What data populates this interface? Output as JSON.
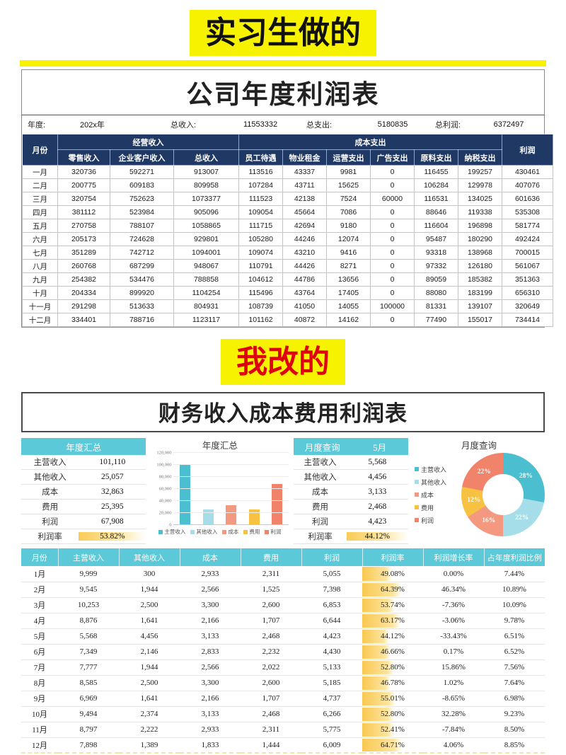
{
  "banners": {
    "intern": "实习生做的",
    "mine": "我改的"
  },
  "colors": {
    "banner_yellow": "#F7F200",
    "banner_red": "#DF0010",
    "navy_header": "#1F3864",
    "teal_header": "#5BC9D8",
    "rate_bar": "#F9C850"
  },
  "sheet1": {
    "title": "公司年度利润表",
    "info": {
      "year_label": "年度:",
      "year_value": "202x年",
      "income_label": "总收入:",
      "income_value": "11553332",
      "expense_label": "总支出:",
      "expense_value": "5180835",
      "profit_label": "总利润:",
      "profit_value": "6372497"
    },
    "header": {
      "month": "月份",
      "income_group": "经营收入",
      "cost_group": "成本支出",
      "profit": "利润",
      "income_cols": [
        "零售收入",
        "企业客户收入",
        "总收入"
      ],
      "cost_cols": [
        "员工待遇",
        "物业租金",
        "运营支出",
        "广告支出",
        "原料支出",
        "纳税支出"
      ]
    },
    "rows": [
      [
        "一月",
        "320736",
        "592271",
        "913007",
        "113516",
        "43337",
        "9981",
        "0",
        "116455",
        "199257",
        "430461"
      ],
      [
        "二月",
        "200775",
        "609183",
        "809958",
        "107284",
        "43711",
        "15625",
        "0",
        "106284",
        "129978",
        "407076"
      ],
      [
        "三月",
        "320754",
        "752623",
        "1073377",
        "111523",
        "42138",
        "7524",
        "60000",
        "116531",
        "134025",
        "601636"
      ],
      [
        "四月",
        "381112",
        "523984",
        "905096",
        "109054",
        "45664",
        "7086",
        "0",
        "88646",
        "119338",
        "535308"
      ],
      [
        "五月",
        "270758",
        "788107",
        "1058865",
        "111715",
        "42694",
        "9180",
        "0",
        "116604",
        "196898",
        "581774"
      ],
      [
        "六月",
        "205173",
        "724628",
        "929801",
        "105280",
        "44246",
        "12074",
        "0",
        "95487",
        "180290",
        "492424"
      ],
      [
        "七月",
        "351289",
        "742712",
        "1094001",
        "109074",
        "43210",
        "9416",
        "0",
        "93318",
        "138968",
        "700015"
      ],
      [
        "八月",
        "260768",
        "687299",
        "948067",
        "110791",
        "44426",
        "8271",
        "0",
        "97332",
        "126180",
        "561067"
      ],
      [
        "九月",
        "254382",
        "534476",
        "788858",
        "104612",
        "44786",
        "13656",
        "0",
        "89059",
        "185382",
        "351363"
      ],
      [
        "十月",
        "204334",
        "899920",
        "1104254",
        "115496",
        "43764",
        "17405",
        "0",
        "88080",
        "183199",
        "656310"
      ],
      [
        "十一月",
        "291298",
        "513633",
        "804931",
        "108739",
        "41050",
        "14055",
        "100000",
        "81331",
        "139107",
        "320649"
      ],
      [
        "十二月",
        "334401",
        "788716",
        "1123117",
        "101162",
        "40872",
        "14162",
        "0",
        "77490",
        "155017",
        "734414"
      ]
    ]
  },
  "section2": {
    "title": "财务收入成本费用利润表",
    "annual_panel": {
      "header": "年度汇总",
      "rows": [
        [
          "主营收入",
          "101,110"
        ],
        [
          "其他收入",
          "25,057"
        ],
        [
          "成本",
          "32,863"
        ],
        [
          "费用",
          "25,395"
        ],
        [
          "利润",
          "67,908"
        ]
      ],
      "rate_label": "利润率",
      "rate_value": "53.82%"
    },
    "monthly_panel": {
      "header": "月度查询",
      "month": "5月",
      "rows": [
        [
          "主营收入",
          "5,568"
        ],
        [
          "其他收入",
          "4,456"
        ],
        [
          "成本",
          "3,133"
        ],
        [
          "费用",
          "2,468"
        ],
        [
          "利润",
          "4,423"
        ]
      ],
      "rate_label": "利润率",
      "rate_value": "44.12%"
    },
    "table": {
      "headers": [
        "月份",
        "主营收入",
        "其他收入",
        "成本",
        "费用",
        "利润",
        "利润率",
        "利润增长率",
        "占年度利润比例"
      ],
      "rows": [
        [
          "1月",
          "9,999",
          "300",
          "2,933",
          "2,311",
          "5,055",
          "49.08%",
          "0.00%",
          "7.44%"
        ],
        [
          "2月",
          "9,545",
          "1,944",
          "2,566",
          "1,525",
          "7,398",
          "64.39%",
          "46.34%",
          "10.89%"
        ],
        [
          "3月",
          "10,253",
          "2,500",
          "3,300",
          "2,600",
          "6,853",
          "53.74%",
          "-7.36%",
          "10.09%"
        ],
        [
          "4月",
          "8,876",
          "1,641",
          "2,166",
          "1,707",
          "6,644",
          "63.17%",
          "-3.06%",
          "9.78%"
        ],
        [
          "5月",
          "5,568",
          "4,456",
          "3,133",
          "2,468",
          "4,423",
          "44.12%",
          "-33.43%",
          "6.51%"
        ],
        [
          "6月",
          "7,349",
          "2,146",
          "2,833",
          "2,232",
          "4,430",
          "46.66%",
          "0.17%",
          "6.52%"
        ],
        [
          "7月",
          "7,777",
          "1,944",
          "2,566",
          "2,022",
          "5,133",
          "52.80%",
          "15.86%",
          "7.56%"
        ],
        [
          "8月",
          "8,585",
          "2,500",
          "3,300",
          "2,600",
          "5,185",
          "46.78%",
          "1.02%",
          "7.64%"
        ],
        [
          "9月",
          "6,969",
          "1,641",
          "2,166",
          "1,707",
          "4,737",
          "55.01%",
          "-8.65%",
          "6.98%"
        ],
        [
          "10月",
          "9,494",
          "2,374",
          "3,133",
          "2,468",
          "6,266",
          "52.80%",
          "32.28%",
          "9.23%"
        ],
        [
          "11月",
          "8,797",
          "2,222",
          "2,933",
          "2,311",
          "5,775",
          "52.41%",
          "-7.84%",
          "8.50%"
        ],
        [
          "12月",
          "7,898",
          "1,389",
          "1,833",
          "1,444",
          "6,009",
          "64.71%",
          "4.06%",
          "8.85%"
        ]
      ]
    }
  },
  "chart_data": [
    {
      "type": "bar",
      "title": "年度汇总",
      "categories": [
        "主营收入",
        "其他收入",
        "成本",
        "费用",
        "利润"
      ],
      "values": [
        101110,
        25057,
        32863,
        25395,
        67908
      ],
      "colors": [
        "#4BBFCF",
        "#A5DEE8",
        "#F4997F",
        "#F7C242",
        "#F0836A"
      ],
      "xlabel": "",
      "ylabel": "",
      "ylim": [
        0,
        120000
      ],
      "ytick_step": 20000,
      "grid": true,
      "legend_position": "bottom"
    },
    {
      "type": "pie",
      "title": "月度查询",
      "labels": [
        "主营收入",
        "其他收入",
        "成本",
        "费用",
        "利润"
      ],
      "values": [
        28,
        22,
        16,
        12,
        22
      ],
      "display_labels": [
        "28%",
        "22%",
        "16%",
        "12%",
        "22%"
      ],
      "colors": [
        "#4BBFCF",
        "#A5DEE8",
        "#F4997F",
        "#F7C242",
        "#F0836A"
      ],
      "donut": true,
      "legend_position": "left"
    }
  ]
}
